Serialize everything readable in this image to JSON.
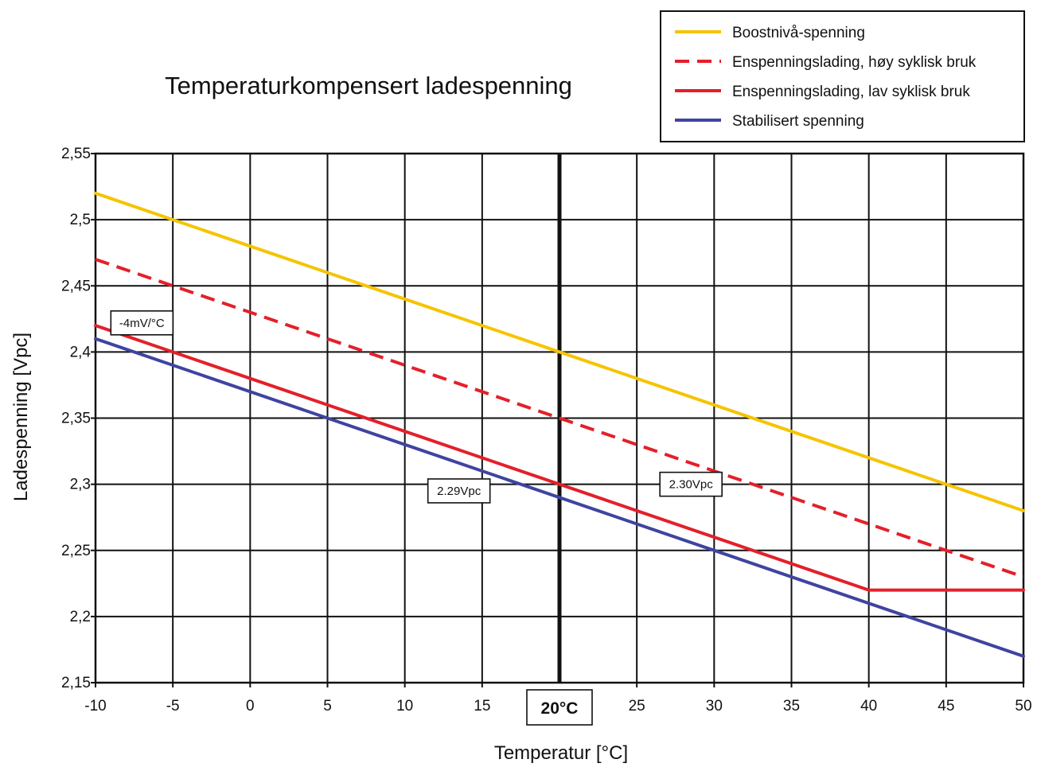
{
  "chart_data": {
    "type": "line",
    "title": "Temperaturkompensert ladespenning",
    "xlabel": "Temperatur [°C]",
    "ylabel": "Ladespenning [Vpc]",
    "xlim": [
      -10,
      50
    ],
    "ylim": [
      2.15,
      2.55
    ],
    "x_ticks": [
      {
        "value": -10,
        "label": "-10"
      },
      {
        "value": -5,
        "label": "-5"
      },
      {
        "value": 0,
        "label": "0"
      },
      {
        "value": 5,
        "label": "5"
      },
      {
        "value": 10,
        "label": "10"
      },
      {
        "value": 15,
        "label": "15"
      },
      {
        "value": 25,
        "label": "25"
      },
      {
        "value": 30,
        "label": "30"
      },
      {
        "value": 35,
        "label": "35"
      },
      {
        "value": 40,
        "label": "40"
      },
      {
        "value": 45,
        "label": "45"
      },
      {
        "value": 50,
        "label": "50"
      }
    ],
    "y_ticks": [
      {
        "value": 2.15,
        "label": "2,15"
      },
      {
        "value": 2.2,
        "label": "2,2"
      },
      {
        "value": 2.25,
        "label": "2,25"
      },
      {
        "value": 2.3,
        "label": "2,3"
      },
      {
        "value": 2.35,
        "label": "2,35"
      },
      {
        "value": 2.4,
        "label": "2,4"
      },
      {
        "value": 2.45,
        "label": "2,45"
      },
      {
        "value": 2.5,
        "label": "2,5"
      },
      {
        "value": 2.55,
        "label": "2,55"
      }
    ],
    "grid": true,
    "legend_position": "top-right",
    "reference_line": {
      "x": 20,
      "label": "20°C"
    },
    "series": [
      {
        "name": "Boostnivå-spenning",
        "color": "#f5c400",
        "style": "solid",
        "points": [
          [
            -10,
            2.52
          ],
          [
            50,
            2.28
          ]
        ]
      },
      {
        "name": "Enspenningslading, høy syklisk bruk",
        "color": "#e3202a",
        "style": "dashed",
        "points": [
          [
            -10,
            2.47
          ],
          [
            50,
            2.23
          ]
        ]
      },
      {
        "name": "Enspenningslading, lav syklisk bruk",
        "color": "#e3202a",
        "style": "solid",
        "points": [
          [
            -10,
            2.42
          ],
          [
            40,
            2.22
          ],
          [
            50,
            2.22
          ]
        ]
      },
      {
        "name": "Stabilisert spenning",
        "color": "#3f44a0",
        "style": "solid",
        "points": [
          [
            -10,
            2.41
          ],
          [
            50,
            2.17
          ]
        ]
      }
    ],
    "annotations": [
      {
        "text": "-4mV/°C",
        "x": -7,
        "y": 2.422
      },
      {
        "text": "2.29Vpc",
        "x": 13.5,
        "y": 2.295
      },
      {
        "text": "2.30Vpc",
        "x": 28.5,
        "y": 2.3
      }
    ]
  }
}
